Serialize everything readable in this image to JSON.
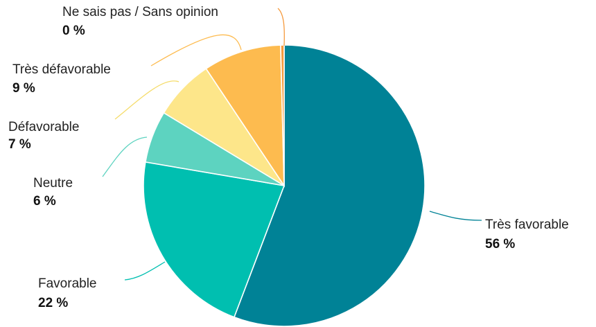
{
  "chart_data": {
    "type": "pie",
    "start_angle_deg": 0,
    "direction": "clockwise",
    "slices": [
      {
        "label": "Très favorable",
        "value": 56,
        "value_label": "56 %",
        "color": "#008296",
        "leader_color": "#008296"
      },
      {
        "label": "Favorable",
        "value": 22,
        "value_label": "22 %",
        "color": "#00BFB0",
        "leader_color": "#00BFB0"
      },
      {
        "label": "Neutre",
        "value": 6,
        "value_label": "6 %",
        "color": "#5DD3C0",
        "leader_color": "#5DD3C0"
      },
      {
        "label": "Défavorable",
        "value": 7,
        "value_label": "7 %",
        "color": "#FDE68A",
        "leader_color": "#F5DC6A"
      },
      {
        "label": "Très défavorable",
        "value": 9,
        "value_label": "9 %",
        "color": "#FDBB4F",
        "leader_color": "#FDBB4F"
      },
      {
        "label": "Ne sais pas / Sans opinion",
        "value": 0.4,
        "value_label": "0 %",
        "color": "#F59A3D",
        "leader_color": "#F59A3D"
      }
    ]
  }
}
